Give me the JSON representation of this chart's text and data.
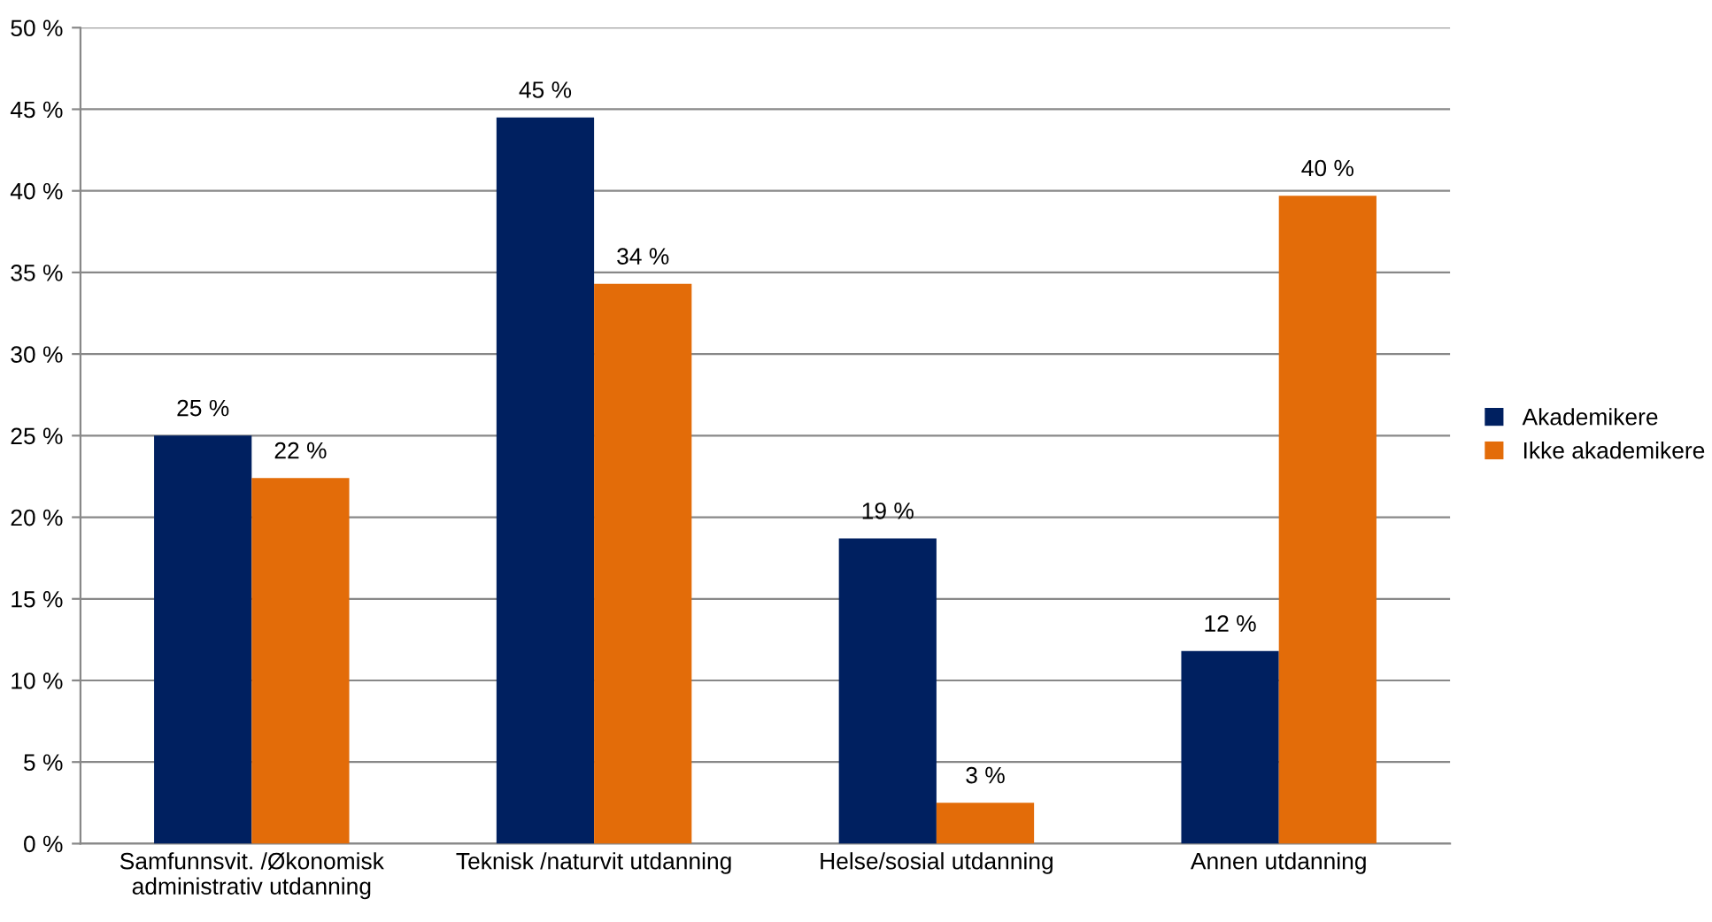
{
  "chart_data": {
    "type": "bar",
    "categories": [
      "Samfunnsvit. /Økonomisk\nadministrativ utdanning",
      "Teknisk /naturvit utdanning",
      "Helse/sosial utdanning",
      "Annen utdanning"
    ],
    "series": [
      {
        "name": "Akademikere",
        "color": "#002060",
        "values": [
          25.0,
          44.5,
          18.7,
          11.8
        ],
        "value_labels": [
          "25 %",
          "45 %",
          "19 %",
          "12 %"
        ]
      },
      {
        "name": "Ikke akademikere",
        "color": "#e36c09",
        "values": [
          22.4,
          34.3,
          2.5,
          39.7
        ],
        "value_labels": [
          "22 %",
          "34 %",
          "3 %",
          "40 %"
        ]
      }
    ],
    "ylim": [
      0,
      50
    ],
    "yticks": [
      {
        "value": 0,
        "label": "0 %"
      },
      {
        "value": 5,
        "label": "5 %"
      },
      {
        "value": 10,
        "label": "10 %"
      },
      {
        "value": 15,
        "label": "15 %"
      },
      {
        "value": 20,
        "label": "20 %"
      },
      {
        "value": 25,
        "label": "25 %"
      },
      {
        "value": 30,
        "label": "30 %"
      },
      {
        "value": 35,
        "label": "35 %"
      },
      {
        "value": 40,
        "label": "40 %"
      },
      {
        "value": 45,
        "label": "45 %"
      },
      {
        "value": 50,
        "label": "50 %"
      }
    ],
    "grid": "y",
    "legend": "right"
  }
}
